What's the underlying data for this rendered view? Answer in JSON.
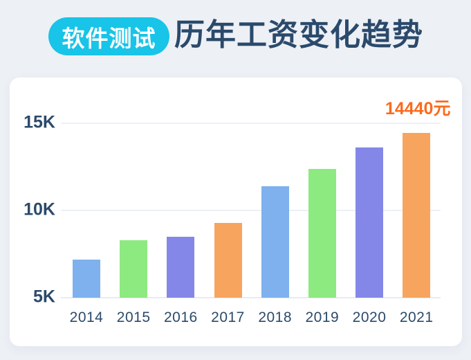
{
  "header": {
    "badge": {
      "label": "软件测试"
    },
    "title": "历年工资变化趋势"
  },
  "colors": {
    "page_bg": "#EDF0F5",
    "card_bg": "#FFFFFF",
    "badge_bg": "#18C4E8",
    "badge_text": "#FFFFFF",
    "title_text": "#2B4A6B",
    "axis_text": "#2B4A6B",
    "gridline": "#ECF0F6",
    "baseline": "#E7EBF2",
    "annotation_text": "#FB6A1E",
    "bar_palette": [
      "#7EB1ED",
      "#8DEA80",
      "#8487E8",
      "#F7A55E"
    ]
  },
  "chart_data": {
    "type": "bar",
    "title": "历年工资变化趋势",
    "subtitle_badge": "软件测试",
    "categories": [
      "2014",
      "2015",
      "2016",
      "2017",
      "2018",
      "2019",
      "2020",
      "2021"
    ],
    "values": [
      7200,
      8300,
      8500,
      9300,
      11400,
      12400,
      13600,
      14440
    ],
    "unit": "元",
    "xlabel": "",
    "ylabel": "",
    "y_ticks": [
      {
        "label": "5K",
        "value": 5000
      },
      {
        "label": "10K",
        "value": 10000
      },
      {
        "label": "15K",
        "value": 15000
      }
    ],
    "ylim": [
      5000,
      16000
    ],
    "grid": true,
    "legend": false,
    "annotation": {
      "text": "14440元",
      "category": "2021",
      "value": 14440
    }
  }
}
